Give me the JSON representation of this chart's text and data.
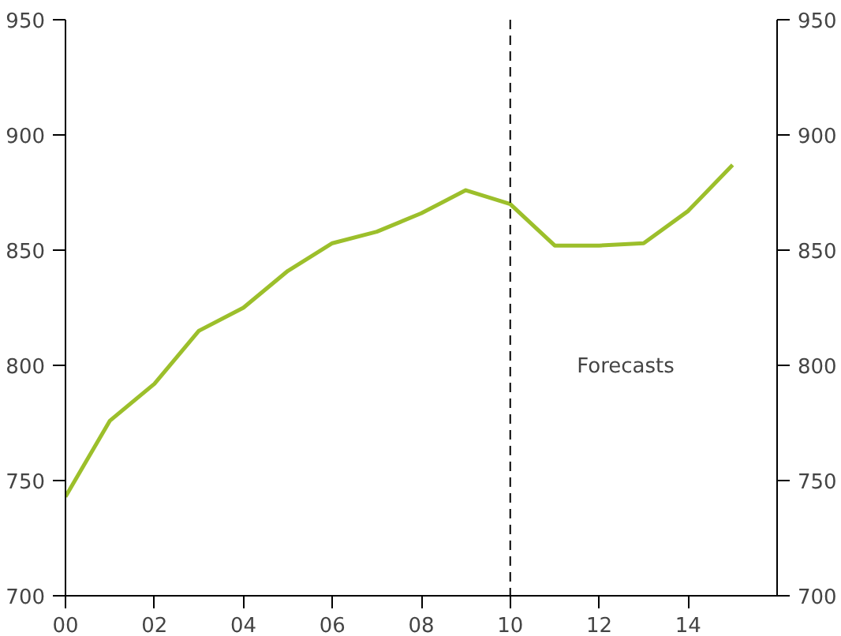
{
  "chart_data": {
    "type": "line",
    "x": [
      0,
      1,
      2,
      3,
      4,
      5,
      6,
      7,
      8,
      9,
      10,
      11,
      12,
      13,
      14,
      15
    ],
    "series": [
      {
        "color": "#9cbf2b",
        "values": [
          743,
          776,
          792,
          815,
          825,
          841,
          853,
          858,
          866,
          876,
          870,
          852,
          852,
          853,
          867,
          887
        ]
      }
    ],
    "xlim": [
      0,
      16
    ],
    "xticks": [
      {
        "value": 0,
        "label": "00"
      },
      {
        "value": 2,
        "label": "02"
      },
      {
        "value": 4,
        "label": "04"
      },
      {
        "value": 6,
        "label": "06"
      },
      {
        "value": 8,
        "label": "08"
      },
      {
        "value": 10,
        "label": "10"
      },
      {
        "value": 12,
        "label": "12"
      },
      {
        "value": 14,
        "label": "14"
      }
    ],
    "ylim": [
      700,
      950
    ],
    "yticks": [
      700,
      750,
      800,
      850,
      900,
      950
    ],
    "y2lim": [
      700,
      950
    ],
    "y2ticks": [
      700,
      750,
      800,
      850,
      900,
      950
    ],
    "ref_lines": [
      {
        "axis": "x",
        "value": 10,
        "label": null,
        "color": "#000000",
        "line_style": "dashed"
      }
    ],
    "annotations": [
      "Forecasts"
    ],
    "grid": false,
    "marker": "none",
    "line_style": "solid"
  }
}
